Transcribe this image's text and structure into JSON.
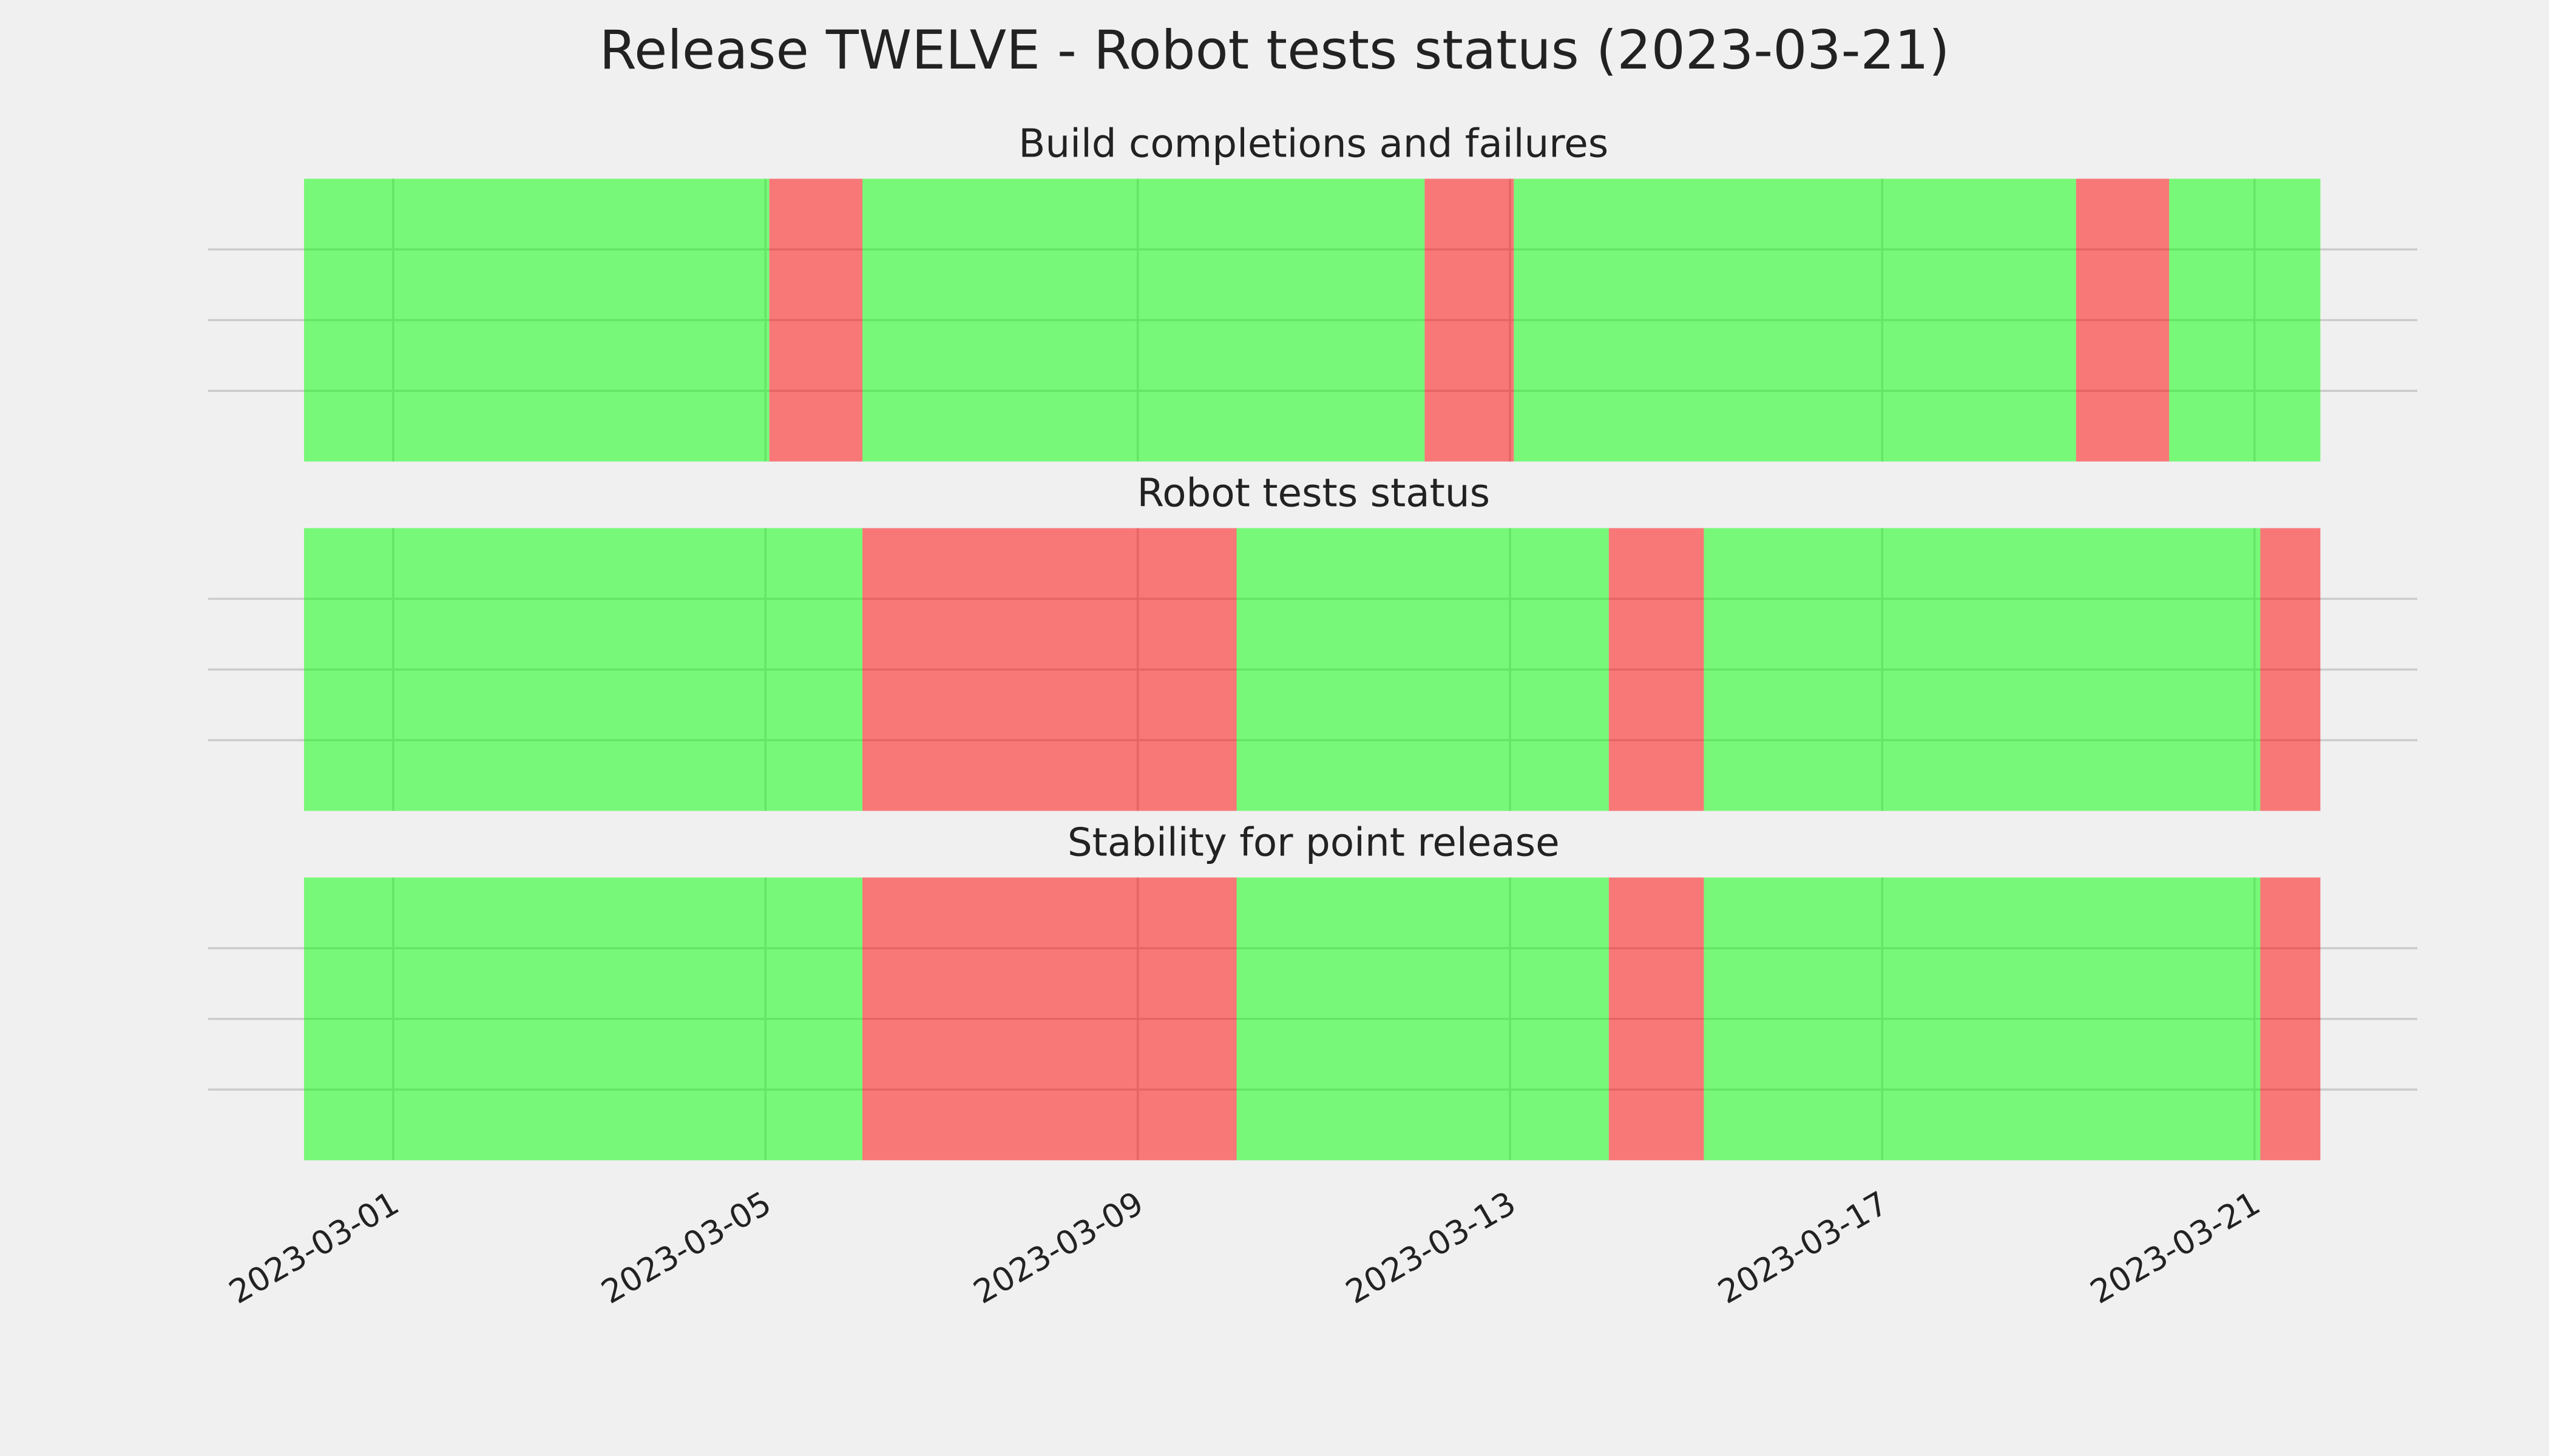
{
  "chart_data": {
    "type": "timeline",
    "title": "Release TWELVE - Robot tests status (2023-03-21)",
    "xlim": [
      "2023-02-27T00:15",
      "2023-03-22T18:00"
    ],
    "xticks": [
      "2023-03-01",
      "2023-03-05",
      "2023-03-09",
      "2023-03-13",
      "2023-03-17",
      "2023-03-21"
    ],
    "ylim": [
      0,
      1
    ],
    "ygrid": [
      0.25,
      0.5,
      0.75
    ],
    "opacity": 0.5,
    "panels": [
      {
        "title": "Build completions and failures",
        "bins": [
          "2023-02-28T01:00",
          "2023-03-05T01:00",
          "2023-03-06T01:00",
          "2023-03-12T02:00",
          "2023-03-13T01:00",
          "2023-03-19T02:00",
          "2023-03-20T02:00",
          "2023-03-21T17:00"
        ],
        "colors": [
          "#00ff00",
          "#ff0000",
          "#00ff00",
          "#ff0000",
          "#00ff00",
          "#ff0000",
          "#00ff00"
        ]
      },
      {
        "title": "Robot tests status",
        "bins": [
          "2023-02-28T01:00",
          "2023-03-06T01:00",
          "2023-03-10T01:30",
          "2023-03-14T01:30",
          "2023-03-15T02:00",
          "2023-03-21T01:30",
          "2023-03-21T17:00"
        ],
        "colors": [
          "#00ff00",
          "#ff0000",
          "#00ff00",
          "#ff0000",
          "#00ff00",
          "#ff0000"
        ]
      },
      {
        "title": "Stability for point release",
        "bins": [
          "2023-02-28T01:00",
          "2023-03-06T01:00",
          "2023-03-10T01:30",
          "2023-03-14T01:30",
          "2023-03-15T02:00",
          "2023-03-21T01:30",
          "2023-03-21T17:00"
        ],
        "colors": [
          "#00ff00",
          "#ff0000",
          "#00ff00",
          "#ff0000",
          "#00ff00",
          "#ff0000"
        ]
      }
    ]
  }
}
